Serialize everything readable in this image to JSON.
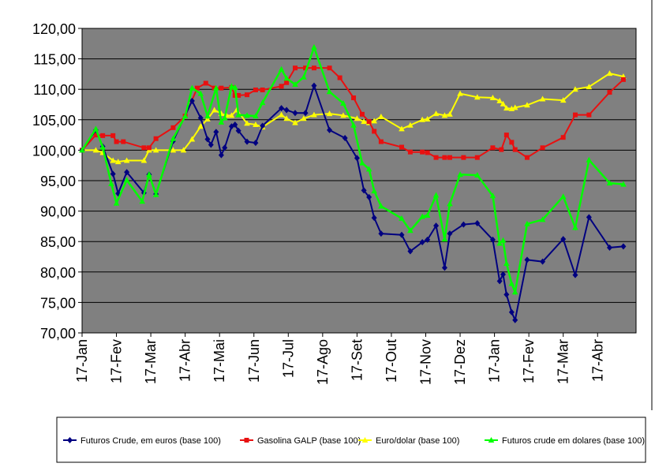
{
  "chart_data": {
    "type": "line",
    "title": "",
    "xlabel": "",
    "ylabel": "",
    "ylim": [
      70,
      120
    ],
    "y_ticks": [
      "70,00",
      "75,00",
      "80,00",
      "85,00",
      "90,00",
      "95,00",
      "100,00",
      "105,00",
      "110,00",
      "115,00",
      "120,00"
    ],
    "x_ticks": [
      "17-Jan",
      "17-Fev",
      "17-Mar",
      "17-Abr",
      "17-Mai",
      "17-Jun",
      "17-Jul",
      "17-Ago",
      "17-Set",
      "17-Out",
      "17-Nov",
      "17-Dez",
      "17-Jan",
      "17-Fev",
      "17-Mar",
      "17-Abr"
    ],
    "x_axis_note": "x values are month offsets from the first tick (17-Jan = 0)",
    "plot_background": "#808080",
    "grid": true,
    "legend_position": "bottom",
    "series": [
      {
        "name": "Futuros Crude, em euros (base 100)",
        "color": "#000080",
        "marker": "diamond",
        "points": [
          [
            0,
            100
          ],
          [
            0.4,
            103.3
          ],
          [
            0.6,
            100.6
          ],
          [
            0.9,
            96.1
          ],
          [
            1.05,
            92.9
          ],
          [
            1.3,
            96.4
          ],
          [
            1.8,
            93
          ],
          [
            1.95,
            96
          ],
          [
            2.15,
            92.8
          ],
          [
            2.65,
            101.5
          ],
          [
            3.2,
            108.1
          ],
          [
            3.45,
            105.3
          ],
          [
            3.65,
            101.8
          ],
          [
            3.75,
            100.9
          ],
          [
            3.9,
            103
          ],
          [
            4.05,
            99.2
          ],
          [
            4.15,
            100.4
          ],
          [
            4.35,
            103.9
          ],
          [
            4.45,
            104.2
          ],
          [
            4.55,
            103.2
          ],
          [
            4.8,
            101.4
          ],
          [
            5.05,
            101.2
          ],
          [
            5.25,
            104
          ],
          [
            5.8,
            106.9
          ],
          [
            5.95,
            106.6
          ],
          [
            6.2,
            106.1
          ],
          [
            6.5,
            106.1
          ],
          [
            6.75,
            110.6
          ],
          [
            7.2,
            103.3
          ],
          [
            7.65,
            102
          ],
          [
            8.0,
            98.7
          ],
          [
            8.2,
            93.4
          ],
          [
            8.35,
            92.3
          ],
          [
            8.5,
            88.9
          ],
          [
            8.7,
            86.3
          ],
          [
            9.3,
            86.1
          ],
          [
            9.55,
            83.4
          ],
          [
            9.9,
            84.9
          ],
          [
            10.05,
            85.3
          ],
          [
            10.3,
            87.6
          ],
          [
            10.55,
            80.7
          ],
          [
            10.7,
            86.3
          ],
          [
            11.1,
            87.8
          ],
          [
            11.5,
            88
          ],
          [
            11.95,
            85.3
          ],
          [
            12.15,
            78.5
          ],
          [
            12.25,
            79.6
          ],
          [
            12.35,
            76.3
          ],
          [
            12.5,
            73.4
          ],
          [
            12.6,
            72.1
          ],
          [
            12.95,
            82
          ],
          [
            13.4,
            81.7
          ],
          [
            14.0,
            85.4
          ],
          [
            14.35,
            79.5
          ],
          [
            14.75,
            89
          ],
          [
            15.35,
            84
          ],
          [
            15.75,
            84.2
          ]
        ]
      },
      {
        "name": "Gasolina GALP (base 100)",
        "color": "#e81010",
        "marker": "square",
        "points": [
          [
            0,
            100
          ],
          [
            0.4,
            102.5
          ],
          [
            0.6,
            102.4
          ],
          [
            0.9,
            102.4
          ],
          [
            1.0,
            101.4
          ],
          [
            1.2,
            101.4
          ],
          [
            1.8,
            100.4
          ],
          [
            1.95,
            100.4
          ],
          [
            2.15,
            101.9
          ],
          [
            2.65,
            103.7
          ],
          [
            3.0,
            105.6
          ],
          [
            3.35,
            110.2
          ],
          [
            3.6,
            111
          ],
          [
            3.85,
            110.2
          ],
          [
            4.05,
            110.2
          ],
          [
            4.35,
            110.3
          ],
          [
            4.45,
            109
          ],
          [
            4.55,
            109
          ],
          [
            4.8,
            109.1
          ],
          [
            5.05,
            109.9
          ],
          [
            5.25,
            109.9
          ],
          [
            5.8,
            110.5
          ],
          [
            5.95,
            111.1
          ],
          [
            6.2,
            113.5
          ],
          [
            6.5,
            113.5
          ],
          [
            6.75,
            113.5
          ],
          [
            7.2,
            113.5
          ],
          [
            7.5,
            111.9
          ],
          [
            7.9,
            108.6
          ],
          [
            8.15,
            105.9
          ],
          [
            8.35,
            104.7
          ],
          [
            8.5,
            103.1
          ],
          [
            8.7,
            101.4
          ],
          [
            9.3,
            100.5
          ],
          [
            9.55,
            99.7
          ],
          [
            9.9,
            99.7
          ],
          [
            10.05,
            99.6
          ],
          [
            10.3,
            98.8
          ],
          [
            10.55,
            98.8
          ],
          [
            10.7,
            98.8
          ],
          [
            11.1,
            98.8
          ],
          [
            11.5,
            98.8
          ],
          [
            11.95,
            100.4
          ],
          [
            12.2,
            100.1
          ],
          [
            12.35,
            102.5
          ],
          [
            12.5,
            101.3
          ],
          [
            12.6,
            100.1
          ],
          [
            12.95,
            98.8
          ],
          [
            13.4,
            100.4
          ],
          [
            14.0,
            102.1
          ],
          [
            14.35,
            105.8
          ],
          [
            14.75,
            105.8
          ],
          [
            15.35,
            109.5
          ],
          [
            15.75,
            111.6
          ]
        ]
      },
      {
        "name": "Euro/dolar (base 100)",
        "color": "#ffff00",
        "marker": "triangle",
        "points": [
          [
            0,
            100
          ],
          [
            0.4,
            100
          ],
          [
            0.6,
            99.6
          ],
          [
            0.9,
            98.3
          ],
          [
            1.05,
            98.1
          ],
          [
            1.3,
            98.3
          ],
          [
            1.8,
            98.3
          ],
          [
            1.95,
            100
          ],
          [
            2.15,
            100
          ],
          [
            2.65,
            100
          ],
          [
            2.95,
            100
          ],
          [
            3.2,
            101.8
          ],
          [
            3.45,
            103.9
          ],
          [
            3.65,
            105.1
          ],
          [
            3.85,
            106.6
          ],
          [
            4.05,
            106
          ],
          [
            4.2,
            105.7
          ],
          [
            4.35,
            105.7
          ],
          [
            4.5,
            106.6
          ],
          [
            4.8,
            104.4
          ],
          [
            5.05,
            104.2
          ],
          [
            5.25,
            103.8
          ],
          [
            5.8,
            105.8
          ],
          [
            5.95,
            105.2
          ],
          [
            6.2,
            104.5
          ],
          [
            6.45,
            105.2
          ],
          [
            6.75,
            105.8
          ],
          [
            7.2,
            106
          ],
          [
            7.6,
            105.7
          ],
          [
            8.0,
            105.2
          ],
          [
            8.2,
            104.7
          ],
          [
            8.35,
            104.5
          ],
          [
            8.5,
            104.8
          ],
          [
            8.7,
            105.5
          ],
          [
            9.3,
            103.5
          ],
          [
            9.55,
            104.1
          ],
          [
            9.9,
            105
          ],
          [
            10.05,
            105.1
          ],
          [
            10.3,
            106
          ],
          [
            10.55,
            105.7
          ],
          [
            10.7,
            105.9
          ],
          [
            11.0,
            109.3
          ],
          [
            11.5,
            108.7
          ],
          [
            11.95,
            108.6
          ],
          [
            12.15,
            108.1
          ],
          [
            12.25,
            107.6
          ],
          [
            12.35,
            106.9
          ],
          [
            12.5,
            106.8
          ],
          [
            12.6,
            107
          ],
          [
            12.95,
            107.4
          ],
          [
            13.4,
            108.4
          ],
          [
            14.0,
            108.2
          ],
          [
            14.35,
            110
          ],
          [
            14.75,
            110.4
          ],
          [
            15.35,
            112.6
          ],
          [
            15.75,
            112.1
          ]
        ]
      },
      {
        "name": "Futuros crude em dolares (base 100)",
        "color": "#00ff00",
        "marker": "triangle",
        "points": [
          [
            0,
            100
          ],
          [
            0.4,
            103.5
          ],
          [
            0.6,
            100.5
          ],
          [
            0.85,
            94.5
          ],
          [
            1.0,
            91.3
          ],
          [
            1.3,
            95.1
          ],
          [
            1.75,
            91.6
          ],
          [
            1.95,
            96
          ],
          [
            2.15,
            92.7
          ],
          [
            2.65,
            101.9
          ],
          [
            3.0,
            105.6
          ],
          [
            3.2,
            110.2
          ],
          [
            3.45,
            109.3
          ],
          [
            3.65,
            105.6
          ],
          [
            3.9,
            110.2
          ],
          [
            4.05,
            104.6
          ],
          [
            4.15,
            105.3
          ],
          [
            4.35,
            110.5
          ],
          [
            4.45,
            110.3
          ],
          [
            4.55,
            105.8
          ],
          [
            4.8,
            105.7
          ],
          [
            5.05,
            105.6
          ],
          [
            5.25,
            107.8
          ],
          [
            5.8,
            113.3
          ],
          [
            5.95,
            111.8
          ],
          [
            6.2,
            110.8
          ],
          [
            6.45,
            112
          ],
          [
            6.75,
            116.9
          ],
          [
            7.2,
            109.6
          ],
          [
            7.6,
            107.7
          ],
          [
            7.9,
            104.1
          ],
          [
            8.15,
            97.9
          ],
          [
            8.35,
            96.9
          ],
          [
            8.5,
            93.3
          ],
          [
            8.7,
            90.8
          ],
          [
            9.3,
            88.8
          ],
          [
            9.55,
            86.8
          ],
          [
            9.9,
            89.1
          ],
          [
            10.05,
            89.3
          ],
          [
            10.3,
            92.6
          ],
          [
            10.55,
            85.4
          ],
          [
            10.7,
            91.2
          ],
          [
            11.0,
            96
          ],
          [
            11.5,
            95.9
          ],
          [
            11.95,
            92.5
          ],
          [
            12.15,
            84.7
          ],
          [
            12.25,
            85.2
          ],
          [
            12.35,
            81.4
          ],
          [
            12.5,
            78.1
          ],
          [
            12.6,
            76.7
          ],
          [
            12.95,
            87.9
          ],
          [
            13.4,
            88.6
          ],
          [
            14.0,
            92.4
          ],
          [
            14.35,
            87.3
          ],
          [
            14.75,
            98.4
          ],
          [
            15.35,
            94.6
          ],
          [
            15.75,
            94.4
          ]
        ]
      }
    ]
  }
}
